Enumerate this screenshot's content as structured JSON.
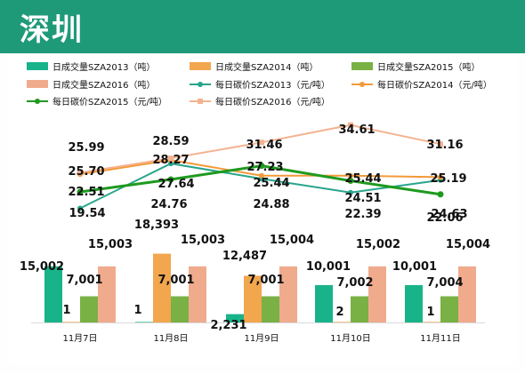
{
  "header": {
    "title": "深圳"
  },
  "colors": {
    "header_bg": "#1f9a78",
    "bar_2013": "#19b38a",
    "bar_2014": "#f2a64e",
    "bar_2015": "#79b144",
    "bar_2016": "#f0ab8d",
    "line_2013": "#28a58b",
    "line_2014": "#f29a38",
    "line_2015": "#1e9a1e",
    "line_2016": "#f4b390"
  },
  "chart_data": {
    "type": "bar",
    "title": "",
    "categories": [
      "11月7日",
      "11月8日",
      "11月9日",
      "11月10日",
      "11月11日"
    ],
    "bar_series": [
      {
        "name": "日成交量SZA2013（吨）",
        "values": [
          15002,
          1,
          2231,
          10001,
          10001
        ],
        "labels": [
          "15,002",
          "1",
          "2,231",
          "10,001",
          "10,001"
        ]
      },
      {
        "name": "日成交量SZA2014（吨）",
        "values": [
          1,
          18393,
          12487,
          2,
          1
        ],
        "labels": [
          "1",
          "18,393",
          "12,487",
          "2",
          "1"
        ]
      },
      {
        "name": "日成交量SZA2015（吨）",
        "values": [
          7001,
          7001,
          7001,
          7002,
          7004
        ],
        "labels": [
          "7,001",
          "7,001",
          "7,001",
          "7,002",
          "7,004"
        ]
      },
      {
        "name": "日成交量SZA2016（吨）",
        "values": [
          15003,
          15003,
          15004,
          15002,
          15004
        ],
        "labels": [
          "15,003",
          "15,003",
          "15,004",
          "15,002",
          "15,004"
        ]
      }
    ],
    "line_series": [
      {
        "name": "每日碳价SZA2013（元/吨）",
        "values": [
          19.54,
          27.64,
          24.88,
          22.39,
          24.63
        ],
        "labels": [
          "19.54",
          "27.64",
          "24.88",
          "22.39",
          "24.63"
        ]
      },
      {
        "name": "每日碳价SZA2014（元/吨）",
        "values": [
          25.7,
          28.27,
          25.44,
          25.44,
          25.19
        ],
        "labels": [
          "25.70",
          "28.27",
          "25.44",
          "25.44",
          "25.19"
        ]
      },
      {
        "name": "每日碳价SZA2015（元/吨）",
        "values": [
          22.51,
          24.76,
          27.23,
          24.51,
          22.06
        ],
        "labels": [
          "22.51",
          "24.76",
          "27.23",
          "24.51",
          "22.06"
        ]
      },
      {
        "name": "每日碳价SZA2016（元/吨）",
        "values": [
          25.99,
          28.59,
          31.46,
          34.61,
          31.16
        ],
        "labels": [
          "25.99",
          "28.59",
          "31.46",
          "34.61",
          "31.16"
        ]
      }
    ],
    "legend": "top",
    "grid": false
  }
}
